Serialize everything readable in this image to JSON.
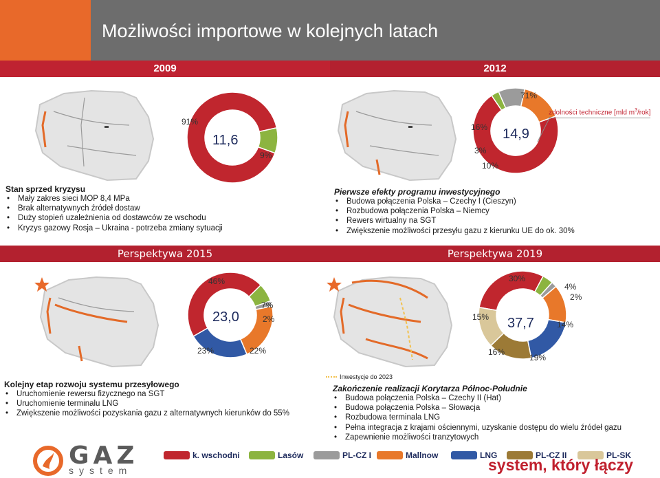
{
  "title": "Możliwości importowe w kolejnych latach",
  "headers": {
    "left_year": "2009",
    "right_year": "2012"
  },
  "perspectives": {
    "left": "Perspektywa 2015",
    "right": "Perspektywa 2019"
  },
  "capacity_note": "zdolności techniczne [mld m",
  "capacity_note_sup": "3",
  "capacity_note_end": "/rok]",
  "charts": {
    "c2009": {
      "center": "11,6",
      "labels": [
        "91%",
        "9%"
      ]
    },
    "c2012": {
      "center": "14,9",
      "labels": [
        "71%",
        "16%",
        "3%",
        "10%"
      ]
    },
    "c2015": {
      "center": "23,0",
      "labels": [
        "46%",
        "7%",
        "2%",
        "22%",
        "23%"
      ]
    },
    "c2019": {
      "center": "37,7",
      "labels": [
        "30%",
        "4%",
        "2%",
        "14%",
        "19%",
        "16%",
        "15%"
      ]
    }
  },
  "chart_data": [
    {
      "type": "pie",
      "title": "",
      "categories": [
        "k. wschodni",
        "Lasów"
      ],
      "values": [
        91,
        9
      ],
      "total": 11.6
    },
    {
      "type": "pie",
      "title": "",
      "categories": [
        "k. wschodni",
        "Lasów",
        "PL-CZ I",
        "Mallnow"
      ],
      "values": [
        71,
        3,
        10,
        16
      ],
      "total": 14.9
    },
    {
      "type": "pie",
      "title": "",
      "categories": [
        "k. wschodni",
        "Lasów",
        "PL-CZ I",
        "Mallnow",
        "LNG"
      ],
      "values": [
        46,
        7,
        2,
        22,
        23
      ],
      "total": 23.0
    },
    {
      "type": "pie",
      "title": "",
      "categories": [
        "k. wschodni",
        "Lasów",
        "PL-CZ I",
        "Mallnow",
        "LNG",
        "PL-CZ II",
        "PL-SK"
      ],
      "values": [
        30,
        4,
        2,
        14,
        19,
        16,
        15
      ],
      "total": 37.7
    }
  ],
  "blocks": {
    "b2009": {
      "title": "Stan sprzed kryzysu",
      "items": [
        "Mały zakres sieci MOP 8,4 MPa",
        "Brak alternatywnych źródeł dostaw",
        "Duży stopień uzależnienia od dostawców ze wschodu",
        "Kryzys gazowy Rosja – Ukraina - potrzeba zmiany sytuacji"
      ]
    },
    "b2012": {
      "title": "Pierwsze efekty programu inwestycyjnego",
      "items": [
        "Budowa połączenia Polska – Czechy I (Cieszyn)",
        "Rozbudowa połączenia Polska – Niemcy",
        "Rewers wirtualny na SGT",
        "Zwiększenie możliwości przesyłu gazu z kierunku UE do ok. 30%"
      ]
    },
    "b2015": {
      "title": "Kolejny etap rozwoju systemu przesyłowego",
      "items": [
        "Uruchomienie rewersu fizycznego na SGT",
        "Uruchomienie terminalu LNG",
        "Zwiększenie możliwości pozyskania gazu z alternatywnych kierunków  do 55%"
      ]
    },
    "b2019": {
      "inv_note": "Inwestycje do 2023",
      "title": "Zakończenie realizacji Korytarza Północ-Południe",
      "items": [
        "Budowa połączenia Polska – Czechy II (Hat)",
        "Budowa połączenia Polska – Słowacja",
        "Rozbudowa terminala LNG",
        "Pełna integracja z krajami ościennymi, uzyskanie dostępu do wielu źródeł gazu",
        "Zapewnienie możliwości tranzytowych"
      ]
    }
  },
  "legend": [
    {
      "label": "k. wschodni",
      "color": "#c0262e"
    },
    {
      "label": "Lasów",
      "color": "#8cb440"
    },
    {
      "label": "PL-CZ I",
      "color": "#9b9b9b"
    },
    {
      "label": "Mallnow",
      "color": "#e8782a"
    },
    {
      "label": "LNG",
      "color": "#3159a5"
    },
    {
      "label": "PL-CZ II",
      "color": "#9c7a36"
    },
    {
      "label": "PL-SK",
      "color": "#d9c79a"
    }
  ],
  "logo": {
    "brand": "GAZ",
    "subtitle": "system"
  },
  "slogan": "system, który łączy"
}
